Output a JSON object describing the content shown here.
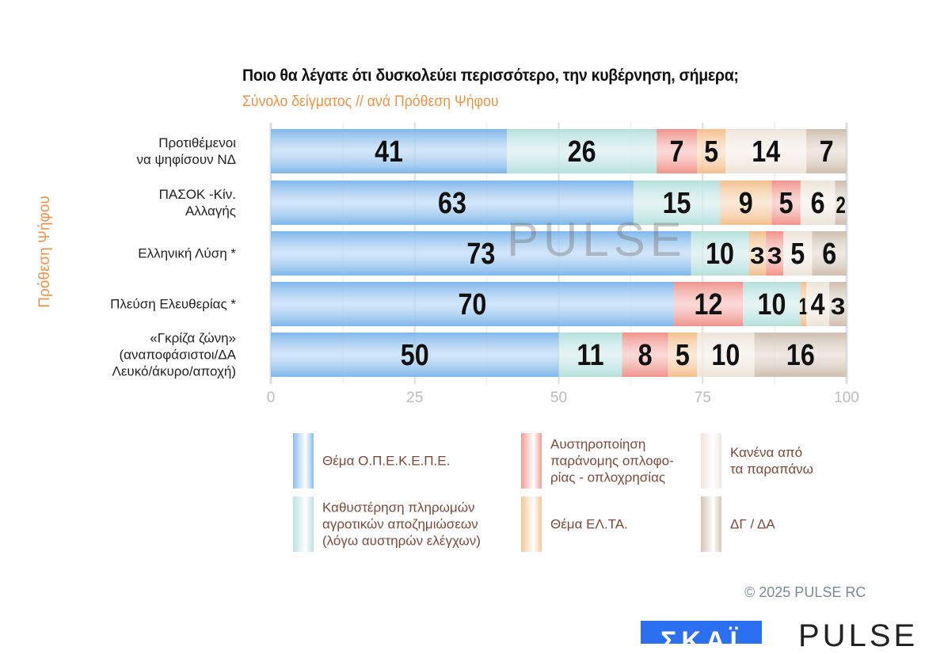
{
  "chart_data": {
    "type": "bar",
    "orientation": "horizontal",
    "stacked": true,
    "title": "Ποιο θα λέγατε ότι δυσκολεύει περισσότερο, την κυβέρνηση, σήμερα;",
    "subtitle": "Σύνολο δείγματος // ανά Πρόθεση Ψήφου",
    "ylabel": "Πρόθεση Ψήφου",
    "xlim": [
      0,
      100
    ],
    "xticks": [
      "0",
      "25",
      "50",
      "75",
      "100"
    ],
    "grid": true,
    "legend_position": "bottom",
    "series": [
      {
        "name": "Θέμα Ο.Π.Ε.Κ.Ε.Π.Ε.",
        "color": "#7fb6ea"
      },
      {
        "name": "Καθυστέρηση πληρωμών\nαγροτικών αποζημιώσεων\n(λόγω αυστηρών ελέγχων)",
        "color": "#b5e0de"
      },
      {
        "name": "Αυστηροποίηση\nπαράνομης οπλοφο-\nρίας - οπλοχρησίας",
        "color": "#f0938a"
      },
      {
        "name": "Θέμα ΕΛ.ΤΑ.",
        "color": "#f3c08e"
      },
      {
        "name": "Κανένα από\nτα παραπάνω",
        "color": "#ede4da"
      },
      {
        "name": "ΔΓ / ΔΑ",
        "color": "#cdbfb0"
      }
    ],
    "categories": [
      {
        "label": "Προτιθέμενοι\nνα ψηφίσουν ΝΔ",
        "segments": [
          [
            0,
            41
          ],
          [
            1,
            26
          ],
          [
            2,
            7
          ],
          [
            3,
            5
          ],
          [
            4,
            14
          ],
          [
            5,
            7
          ]
        ]
      },
      {
        "label": "ΠΑΣΟΚ -Κίν.\nΑλλαγής",
        "segments": [
          [
            0,
            63
          ],
          [
            1,
            15
          ],
          [
            3,
            9
          ],
          [
            2,
            5
          ],
          [
            4,
            6
          ],
          [
            5,
            2
          ]
        ]
      },
      {
        "label": "Ελληνική Λύση *",
        "segments": [
          [
            0,
            73
          ],
          [
            1,
            10
          ],
          [
            3,
            3
          ],
          [
            2,
            3
          ],
          [
            4,
            5
          ],
          [
            5,
            6
          ]
        ]
      },
      {
        "label": "Πλεύση Ελευθερίας *",
        "segments": [
          [
            0,
            70
          ],
          [
            2,
            12
          ],
          [
            1,
            10
          ],
          [
            3,
            1
          ],
          [
            4,
            4
          ],
          [
            5,
            3
          ]
        ]
      },
      {
        "label": "«Γκρίζα ζώνη»\n(αναποφάσιστοι/ΔΑ\nΛευκό/άκυρο/αποχή)",
        "segments": [
          [
            0,
            50
          ],
          [
            1,
            11
          ],
          [
            2,
            8
          ],
          [
            3,
            5
          ],
          [
            4,
            10
          ],
          [
            5,
            16
          ]
        ]
      }
    ]
  },
  "footer": {
    "copyright": "©  2025  PULSE RC",
    "logo_skai": "ΣΚΑΪ",
    "logo_pulse": "PULSE",
    "watermark": "PULSE"
  }
}
